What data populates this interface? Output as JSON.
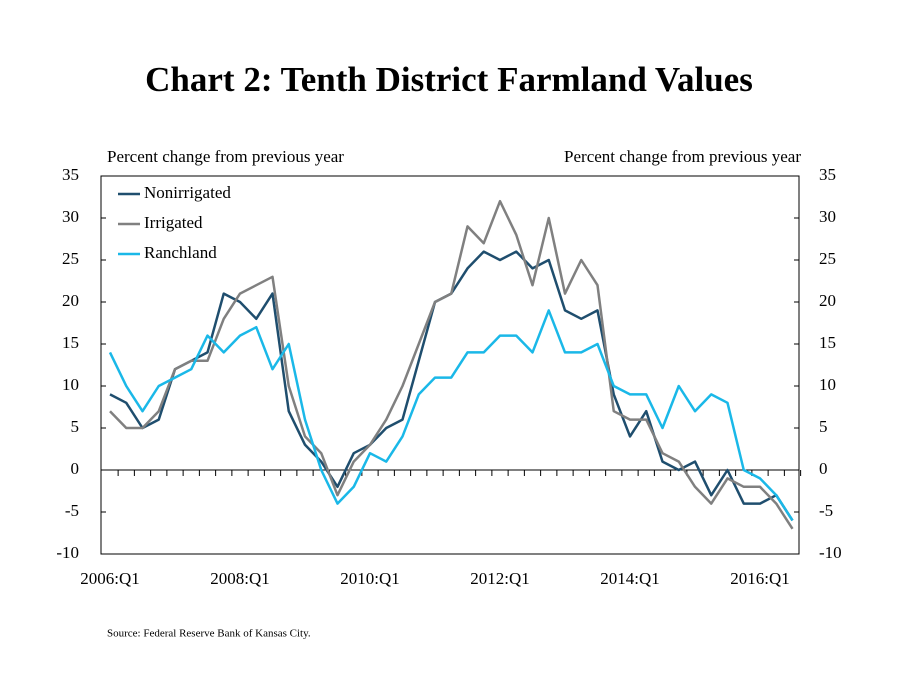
{
  "chart_data": {
    "type": "line",
    "title": "Chart 2: Tenth District Farmland Values",
    "y_label": "Percent change from previous year",
    "y2_label": "Percent change from previous year",
    "source": "Source: Federal Reserve Bank of Kansas City.",
    "categories": [
      "2006:Q1",
      null,
      null,
      null,
      null,
      null,
      null,
      null,
      "2008:Q1",
      null,
      null,
      null,
      null,
      null,
      null,
      null,
      "2010:Q1",
      null,
      null,
      null,
      null,
      null,
      null,
      null,
      "2012:Q1",
      null,
      null,
      null,
      null,
      null,
      null,
      null,
      "2014:Q1",
      null,
      null,
      null,
      null,
      null,
      null,
      null,
      "2016:Q1",
      null,
      null
    ],
    "series": [
      {
        "name": "Nonirrigated",
        "color": "#1f4e6e",
        "values": [
          9,
          8,
          5,
          6,
          12,
          13,
          14,
          21,
          20,
          18,
          21,
          7,
          3,
          1,
          -2,
          2,
          3,
          5,
          6,
          13,
          20,
          21,
          24,
          26,
          25,
          26,
          24,
          25,
          19,
          18,
          19,
          9,
          4,
          7,
          1,
          0,
          1,
          -3,
          0,
          -4,
          -4,
          -3,
          -6
        ]
      },
      {
        "name": "Irrigated",
        "color": "#808080",
        "values": [
          7,
          5,
          5,
          7,
          12,
          13,
          13,
          18,
          21,
          22,
          23,
          10,
          4,
          2,
          -3,
          1,
          3,
          6,
          10,
          15,
          20,
          21,
          29,
          27,
          32,
          28,
          22,
          30,
          21,
          25,
          22,
          7,
          6,
          6,
          2,
          1,
          -2,
          -4,
          -1,
          -2,
          -2,
          -4,
          -7
        ]
      },
      {
        "name": "Ranchland",
        "color": "#1ab8e8",
        "values": [
          14,
          10,
          7,
          10,
          11,
          12,
          16,
          14,
          16,
          17,
          12,
          15,
          6,
          0,
          -4,
          -2,
          2,
          1,
          4,
          9,
          11,
          11,
          14,
          14,
          16,
          16,
          14,
          19,
          14,
          14,
          15,
          10,
          9,
          9,
          5,
          10,
          7,
          9,
          8,
          0,
          -1,
          -3,
          -6
        ]
      }
    ],
    "ylim": [
      -10,
      35
    ],
    "yticks": [
      -10,
      -5,
      0,
      5,
      10,
      15,
      20,
      25,
      30,
      35
    ],
    "y2lim": [
      -10,
      35
    ],
    "y2ticks": [
      -10,
      -5,
      0,
      5,
      10,
      15,
      20,
      25,
      30,
      35
    ],
    "legend": "upper-left"
  }
}
